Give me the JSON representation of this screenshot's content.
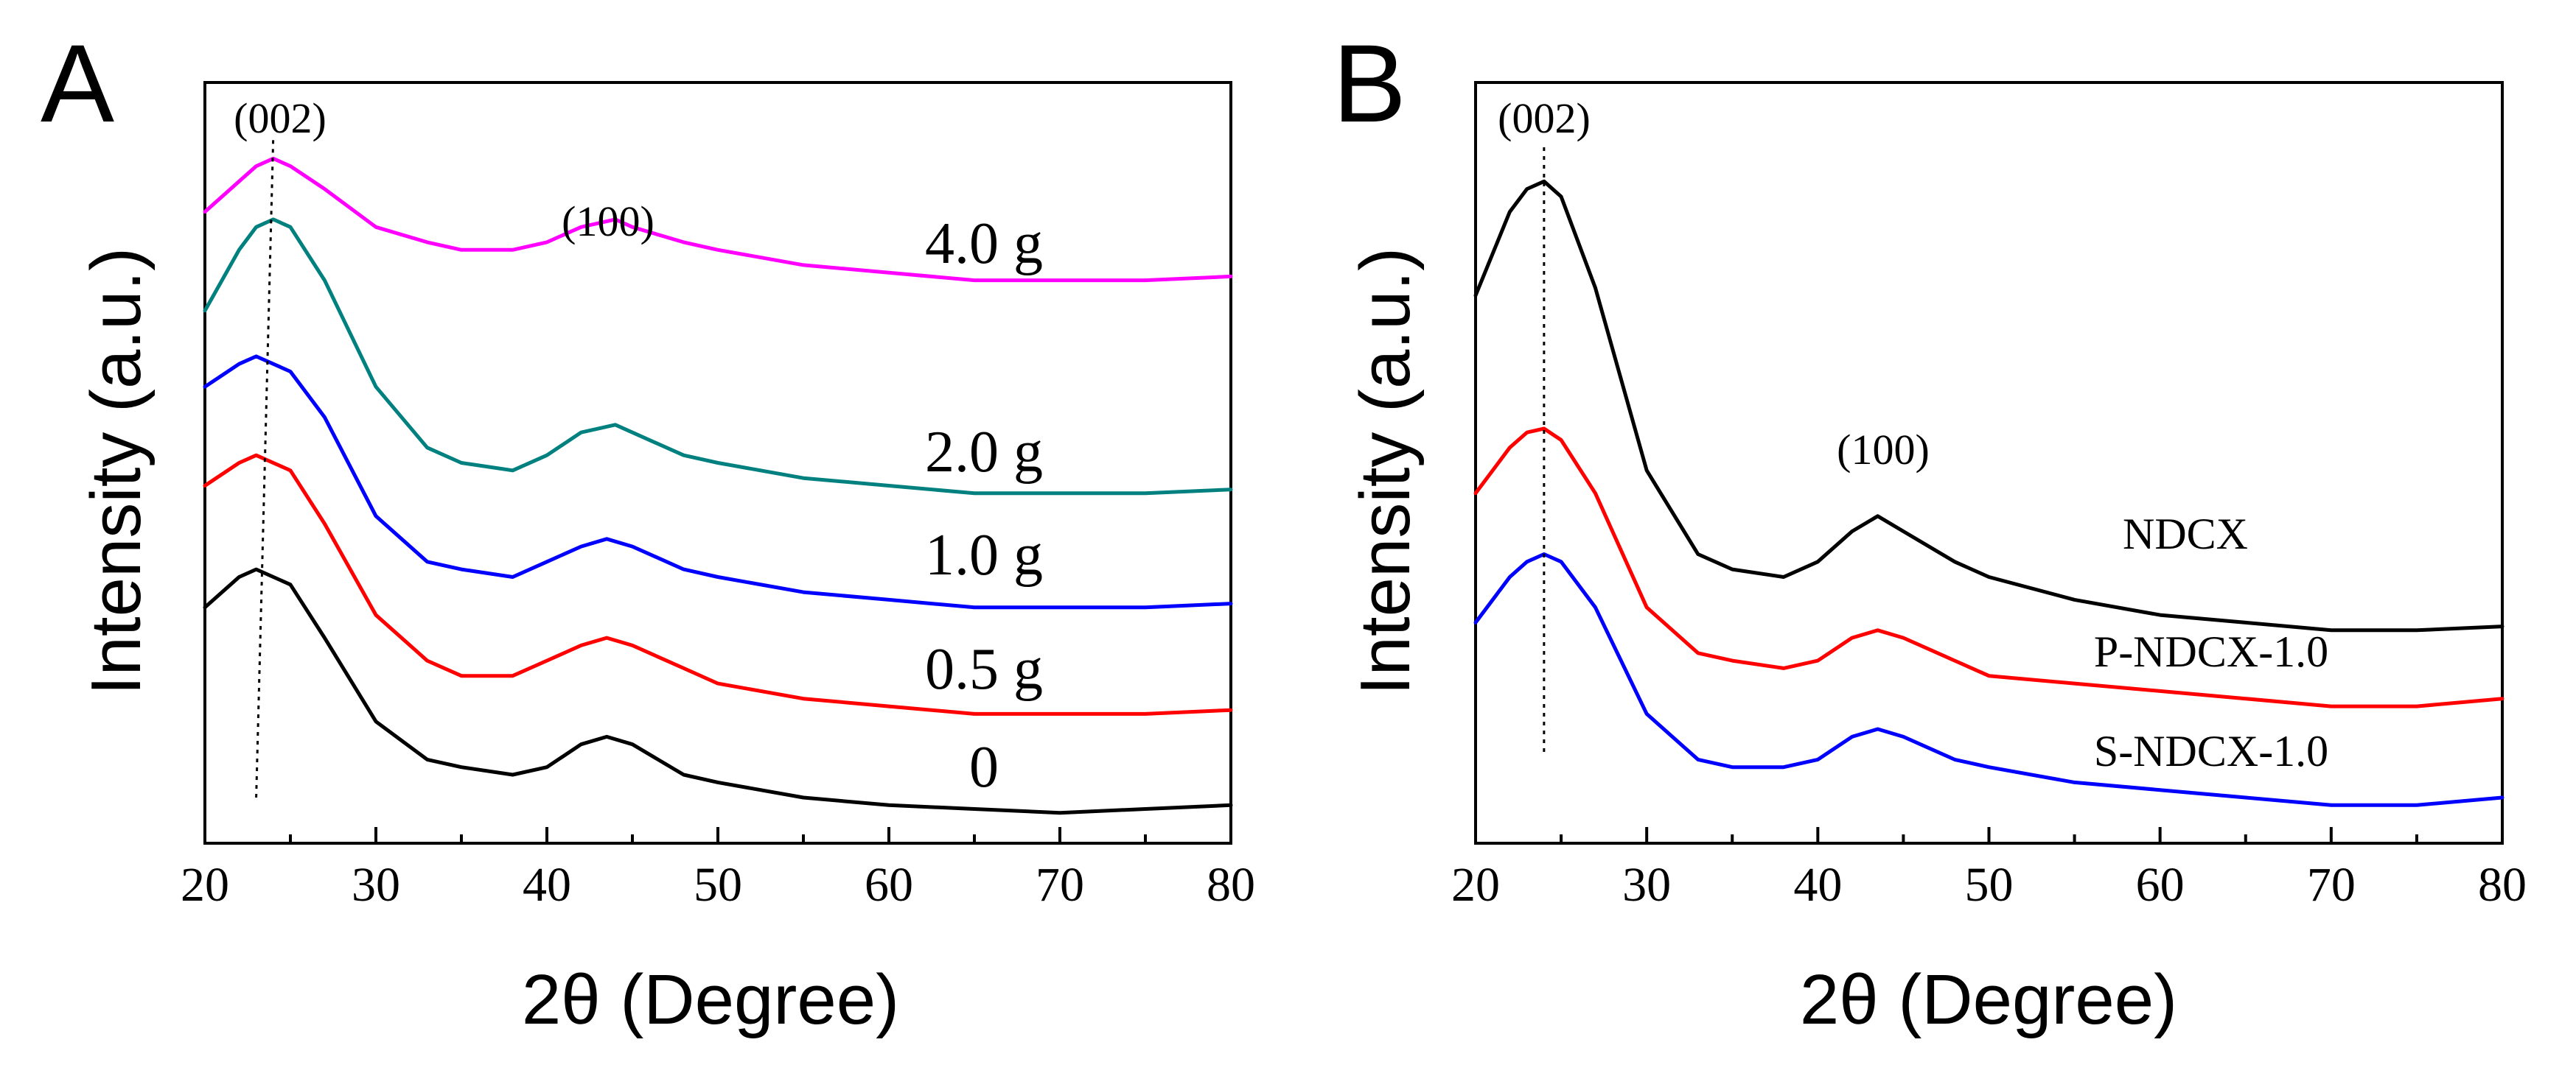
{
  "chart_data": [
    {
      "panel": "A",
      "type": "line",
      "xlabel": "2θ (Degree)",
      "ylabel": "Intensity (a.u.)",
      "xlim": [
        20,
        80
      ],
      "xticks": [
        20,
        30,
        40,
        50,
        60,
        70,
        80
      ],
      "ylim": [
        0,
        1
      ],
      "peak_labels": [
        "(002)",
        "(100)"
      ],
      "series": [
        {
          "name": "0",
          "color": "#000000",
          "x": [
            20,
            22,
            23,
            25,
            27,
            30,
            33,
            35,
            38,
            40,
            42,
            43.5,
            45,
            48,
            50,
            55,
            60,
            65,
            70,
            75,
            80
          ],
          "values": [
            0.31,
            0.35,
            0.36,
            0.34,
            0.27,
            0.16,
            0.11,
            0.1,
            0.09,
            0.1,
            0.13,
            0.14,
            0.13,
            0.09,
            0.08,
            0.06,
            0.05,
            0.045,
            0.04,
            0.045,
            0.05
          ]
        },
        {
          "name": "0.5 g",
          "color": "#ff0000",
          "x": [
            20,
            22,
            23,
            25,
            27,
            30,
            33,
            35,
            38,
            40,
            42,
            43.5,
            45,
            48,
            50,
            55,
            60,
            65,
            70,
            75,
            80
          ],
          "values": [
            0.47,
            0.5,
            0.51,
            0.49,
            0.42,
            0.3,
            0.24,
            0.22,
            0.22,
            0.24,
            0.26,
            0.27,
            0.26,
            0.23,
            0.21,
            0.19,
            0.18,
            0.17,
            0.17,
            0.17,
            0.175
          ]
        },
        {
          "name": "1.0 g",
          "color": "#0000ff",
          "x": [
            20,
            22,
            23,
            25,
            27,
            30,
            33,
            35,
            38,
            40,
            42,
            43.5,
            45,
            48,
            50,
            55,
            60,
            65,
            70,
            75,
            80
          ],
          "values": [
            0.6,
            0.63,
            0.64,
            0.62,
            0.56,
            0.43,
            0.37,
            0.36,
            0.35,
            0.37,
            0.39,
            0.4,
            0.39,
            0.36,
            0.35,
            0.33,
            0.32,
            0.31,
            0.31,
            0.31,
            0.315
          ]
        },
        {
          "name": "2.0 g",
          "color": "#00807f",
          "x": [
            20,
            22,
            23,
            24,
            25,
            27,
            30,
            33,
            35,
            38,
            40,
            42,
            44,
            45,
            48,
            50,
            55,
            60,
            65,
            70,
            75,
            80
          ],
          "values": [
            0.7,
            0.78,
            0.81,
            0.82,
            0.81,
            0.74,
            0.6,
            0.52,
            0.5,
            0.49,
            0.51,
            0.54,
            0.55,
            0.54,
            0.51,
            0.5,
            0.48,
            0.47,
            0.46,
            0.46,
            0.46,
            0.465
          ]
        },
        {
          "name": "4.0 g",
          "color": "#ff00ff",
          "x": [
            20,
            22,
            23,
            24,
            25,
            27,
            30,
            33,
            35,
            38,
            40,
            42,
            44,
            45,
            48,
            50,
            55,
            60,
            65,
            70,
            75,
            80
          ],
          "values": [
            0.83,
            0.87,
            0.89,
            0.9,
            0.89,
            0.86,
            0.81,
            0.79,
            0.78,
            0.78,
            0.79,
            0.81,
            0.82,
            0.81,
            0.79,
            0.78,
            0.76,
            0.75,
            0.74,
            0.74,
            0.74,
            0.745
          ]
        }
      ]
    },
    {
      "panel": "B",
      "type": "line",
      "xlabel": "2θ (Degree)",
      "ylabel": "Intensity (a.u.)",
      "xlim": [
        20,
        80
      ],
      "xticks": [
        20,
        30,
        40,
        50,
        60,
        70,
        80
      ],
      "ylim": [
        0,
        1
      ],
      "peak_labels": [
        "(002)",
        "(100)"
      ],
      "series": [
        {
          "name": "NDCX",
          "color": "#000000",
          "x": [
            20,
            22,
            23,
            24,
            25,
            27,
            30,
            33,
            35,
            38,
            40,
            42,
            43.5,
            45,
            48,
            50,
            55,
            60,
            65,
            70,
            75,
            80
          ],
          "values": [
            0.72,
            0.83,
            0.86,
            0.87,
            0.85,
            0.73,
            0.49,
            0.38,
            0.36,
            0.35,
            0.37,
            0.41,
            0.43,
            0.41,
            0.37,
            0.35,
            0.32,
            0.3,
            0.29,
            0.28,
            0.28,
            0.285
          ]
        },
        {
          "name": "P-NDCX-1.0",
          "color": "#ff0000",
          "x": [
            20,
            22,
            23,
            24,
            25,
            27,
            30,
            33,
            35,
            38,
            40,
            42,
            43.5,
            45,
            48,
            50,
            55,
            60,
            65,
            70,
            75,
            80
          ],
          "values": [
            0.46,
            0.52,
            0.54,
            0.545,
            0.53,
            0.46,
            0.31,
            0.25,
            0.24,
            0.23,
            0.24,
            0.27,
            0.28,
            0.27,
            0.24,
            0.22,
            0.21,
            0.2,
            0.19,
            0.18,
            0.18,
            0.19
          ]
        },
        {
          "name": "S-NDCX-1.0",
          "color": "#0000ff",
          "x": [
            20,
            22,
            23,
            24,
            25,
            27,
            30,
            33,
            35,
            38,
            40,
            42,
            43.5,
            45,
            48,
            50,
            55,
            60,
            65,
            70,
            75,
            80
          ],
          "values": [
            0.29,
            0.35,
            0.37,
            0.38,
            0.37,
            0.31,
            0.17,
            0.11,
            0.1,
            0.1,
            0.11,
            0.14,
            0.15,
            0.14,
            0.11,
            0.1,
            0.08,
            0.07,
            0.06,
            0.05,
            0.05,
            0.06
          ]
        }
      ]
    }
  ]
}
